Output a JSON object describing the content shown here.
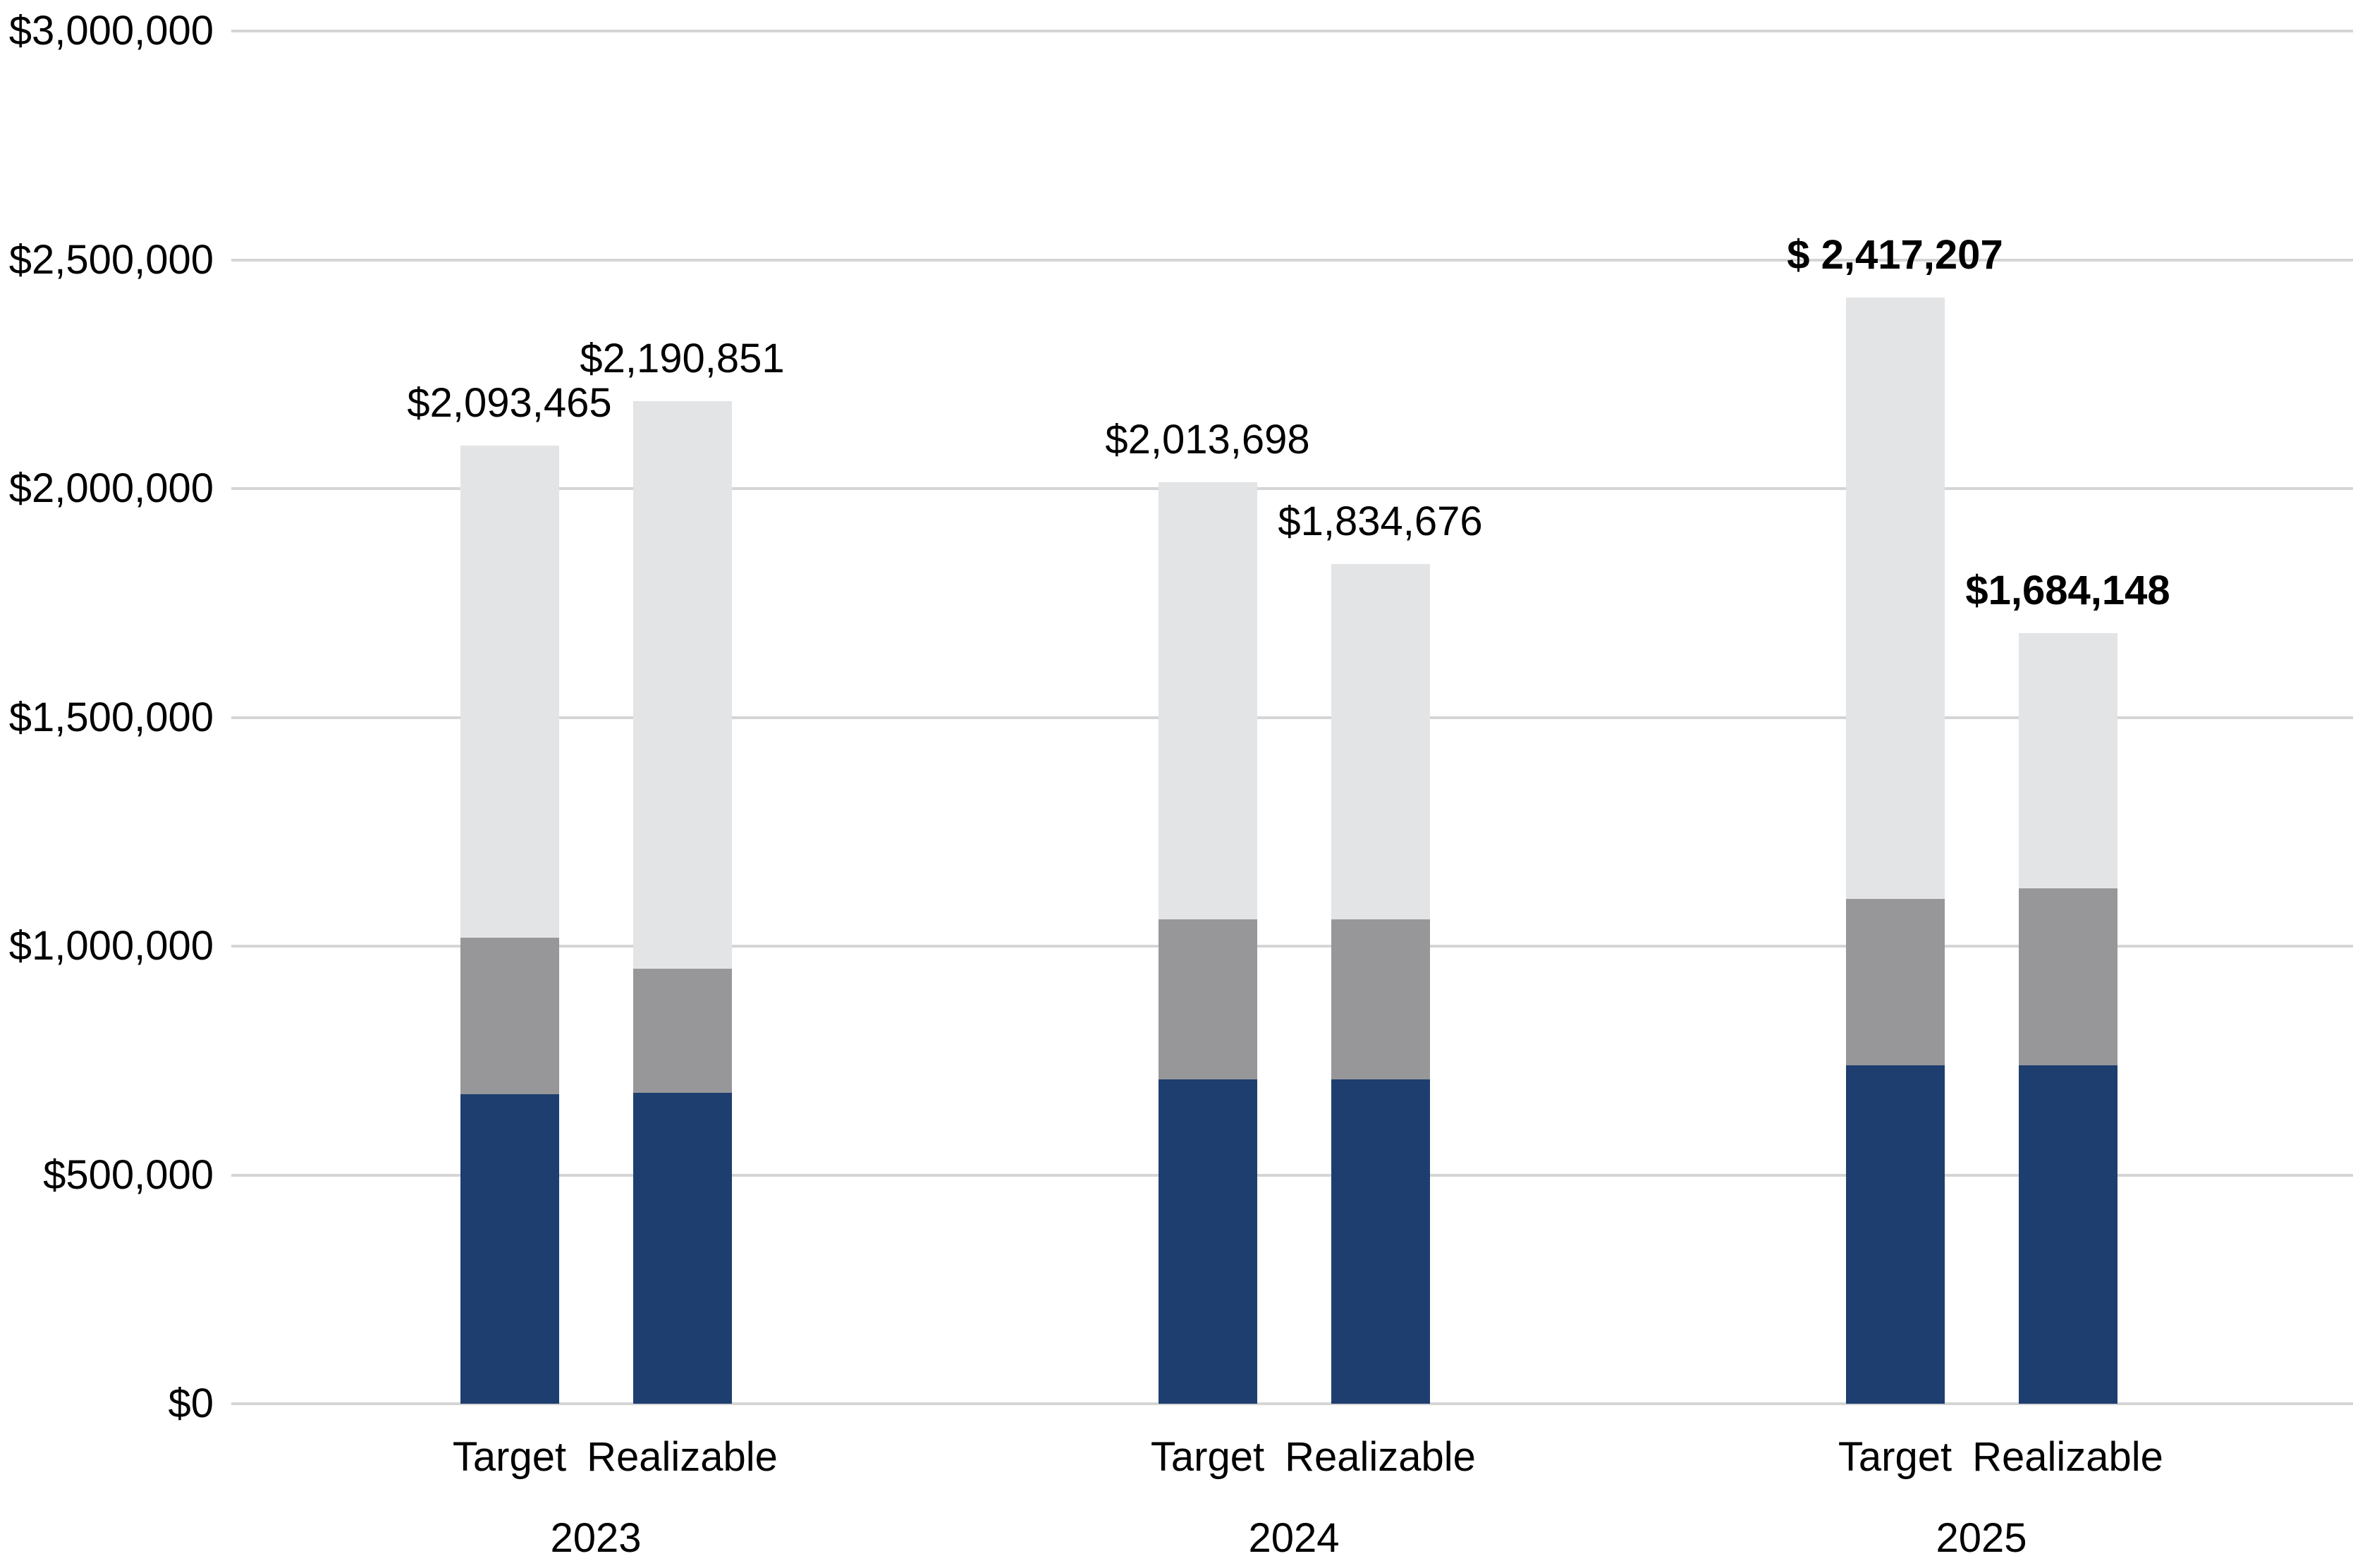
{
  "chart_data": {
    "type": "bar",
    "stacked": true,
    "title": "",
    "xlabel": "",
    "ylabel": "",
    "ylim": [
      0,
      3000000
    ],
    "ytick_step": 500000,
    "grid": true,
    "legend": null,
    "yticks": [
      {
        "value": 0,
        "label": "$0"
      },
      {
        "value": 500000,
        "label": "$500,000"
      },
      {
        "value": 1000000,
        "label": "$1,000,000"
      },
      {
        "value": 1500000,
        "label": "$1,500,000"
      },
      {
        "value": 2000000,
        "label": "$2,000,000"
      },
      {
        "value": 2500000,
        "label": "$2,500,000"
      },
      {
        "value": 3000000,
        "label": "$3,000,000"
      }
    ],
    "segment_order": [
      "navy",
      "gray",
      "light"
    ],
    "segment_colors": {
      "navy": "#1e3e6f",
      "gray": "#97979a",
      "light": "#e3e4e6"
    },
    "colors": {
      "gridline": "#d5d5d5",
      "text": "#000000",
      "background": "#ffffff"
    },
    "groups": [
      {
        "year": "2023",
        "bars": [
          {
            "name": "Target",
            "total": 2093465,
            "total_label": "$2,093,465",
            "label_bold": false,
            "segments": {
              "navy": 677000,
              "gray": 341000,
              "light": 1075465
            }
          },
          {
            "name": "Realizable",
            "total": 2190851,
            "total_label": "$2,190,851",
            "label_bold": false,
            "segments": {
              "navy": 679000,
              "gray": 272000,
              "light": 1239851
            }
          }
        ]
      },
      {
        "year": "2024",
        "bars": [
          {
            "name": "Target",
            "total": 2013698,
            "total_label": "$2,013,698",
            "label_bold": false,
            "segments": {
              "navy": 708000,
              "gray": 350000,
              "light": 955698
            }
          },
          {
            "name": "Realizable",
            "total": 1834676,
            "total_label": "$1,834,676",
            "label_bold": false,
            "segments": {
              "navy": 708000,
              "gray": 350000,
              "light": 776676
            }
          }
        ]
      },
      {
        "year": "2025",
        "bars": [
          {
            "name": "Target",
            "total": 2417207,
            "total_label": "$ 2,417,207",
            "label_bold": true,
            "segments": {
              "navy": 739000,
              "gray": 364000,
              "light": 1314207
            }
          },
          {
            "name": "Realizable",
            "total": 1684148,
            "total_label": "$1,684,148",
            "label_bold": true,
            "segments": {
              "navy": 739000,
              "gray": 387000,
              "light": 558148
            }
          }
        ]
      }
    ]
  }
}
